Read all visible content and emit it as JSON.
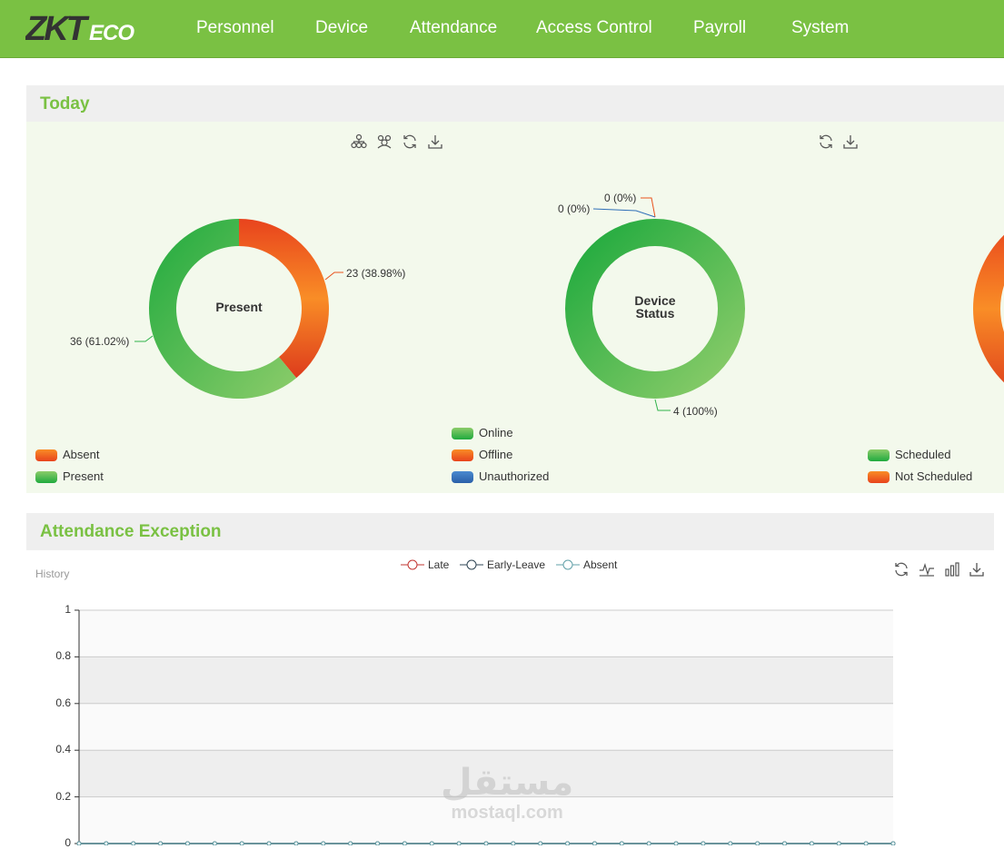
{
  "app": {
    "brand": "ZKTeco"
  },
  "nav": {
    "personnel": "Personnel",
    "device": "Device",
    "attendance": "Attendance",
    "access_control": "Access Control",
    "payroll": "Payroll",
    "system": "System"
  },
  "today": {
    "title": "Today",
    "present_chart": {
      "center_label": "Present",
      "slices": [
        {
          "name": "Absent",
          "value": 23,
          "label": "23 (38.98%)",
          "color": "#e8521d"
        },
        {
          "name": "Present",
          "value": 36,
          "label": "36 (61.02%)",
          "color": "#2fb34a"
        }
      ],
      "legend": [
        "Absent",
        "Present"
      ]
    },
    "device_chart": {
      "center_label_line1": "Device",
      "center_label_line2": "Status",
      "slices": [
        {
          "name": "Online",
          "value": 4,
          "label": "4 (100%)",
          "color": "#2fb34a"
        },
        {
          "name": "Offline",
          "value": 0,
          "label": "0 (0%)",
          "color": "#e8521d"
        },
        {
          "name": "Unauthorized",
          "value": 0,
          "label": "0 (0%)",
          "color": "#2f6fb8"
        }
      ],
      "legend": [
        "Online",
        "Offline",
        "Unauthorized"
      ]
    },
    "schedule_chart": {
      "legend": [
        "Scheduled",
        "Not Scheduled"
      ],
      "colors": [
        "#2fb34a",
        "#e8521d"
      ]
    }
  },
  "exception": {
    "title": "Attendance Exception",
    "history_label": "History",
    "legend": [
      "Late",
      "Early-Leave",
      "Absent"
    ],
    "legend_colors": [
      "#c23531",
      "#2f4554",
      "#61a0a8"
    ]
  },
  "chart_data": {
    "type": "line",
    "series": [
      {
        "name": "Late",
        "values": [
          0,
          0,
          0,
          0,
          0,
          0,
          0,
          0,
          0,
          0,
          0,
          0,
          0,
          0,
          0,
          0,
          0,
          0,
          0,
          0,
          0,
          0,
          0,
          0,
          0,
          0,
          0,
          0,
          0,
          0,
          0
        ]
      },
      {
        "name": "Early-Leave",
        "values": [
          0,
          0,
          0,
          0,
          0,
          0,
          0,
          0,
          0,
          0,
          0,
          0,
          0,
          0,
          0,
          0,
          0,
          0,
          0,
          0,
          0,
          0,
          0,
          0,
          0,
          0,
          0,
          0,
          0,
          0,
          0
        ]
      },
      {
        "name": "Absent",
        "values": [
          0,
          0,
          0,
          0,
          0,
          0,
          0,
          0,
          0,
          0,
          0,
          0,
          0,
          0,
          0,
          0,
          0,
          0,
          0,
          0,
          0,
          0,
          0,
          0,
          0,
          0,
          0,
          0,
          0,
          0,
          0
        ]
      }
    ],
    "yticks": [
      "1",
      "0.8",
      "0.6",
      "0.4",
      "0.2",
      "0"
    ],
    "ylim": [
      0,
      1
    ],
    "grid": true
  },
  "watermark": {
    "arabic": "مستقل",
    "latin": "mostaql.com"
  }
}
